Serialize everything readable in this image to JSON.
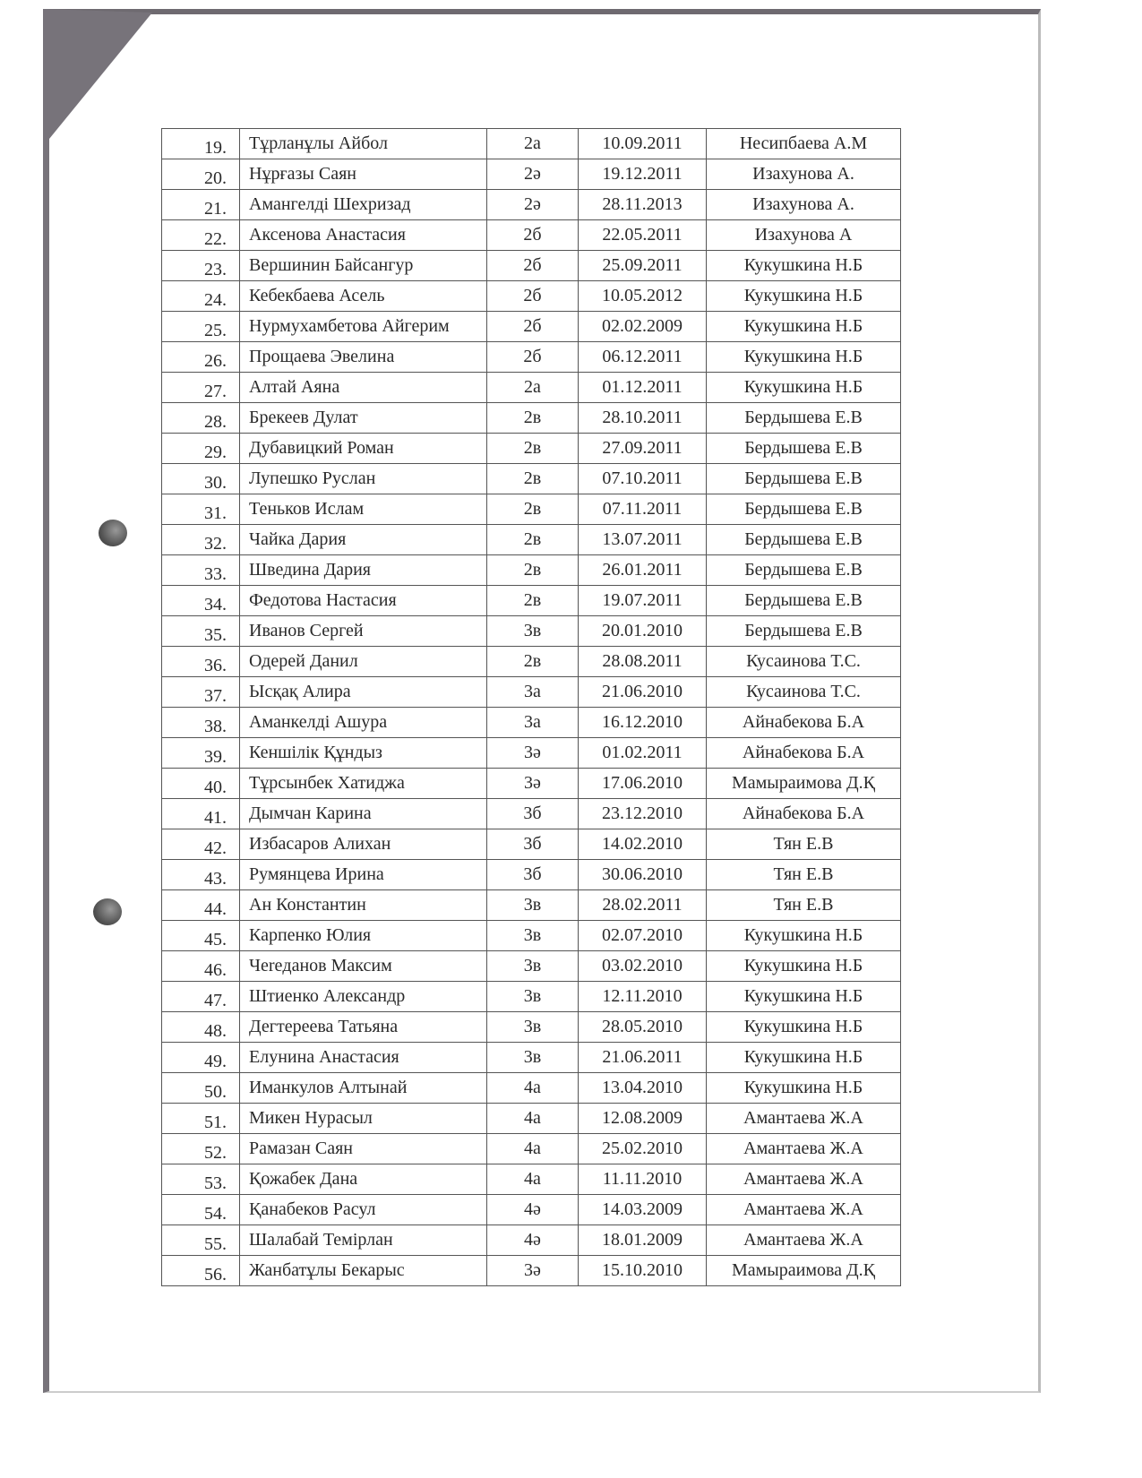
{
  "table": {
    "rows": [
      {
        "num": "19.",
        "name": "Тұрланұлы Айбол",
        "class": "2а",
        "date": "10.09.2011",
        "teacher": "Несипбаева А.М"
      },
      {
        "num": "20.",
        "name": "Нұрғазы Саян",
        "class": "2ә",
        "date": "19.12.2011",
        "teacher": "Изахунова А."
      },
      {
        "num": "21.",
        "name": "Амангелді Шехризад",
        "class": "2ә",
        "date": "28.11.2013",
        "teacher": "Изахунова А."
      },
      {
        "num": "22.",
        "name": "Аксенова  Анастасия",
        "class": "2б",
        "date": "22.05.2011",
        "teacher": "Изахунова А"
      },
      {
        "num": "23.",
        "name": "Вершинин Байсангур",
        "class": "2б",
        "date": "25.09.2011",
        "teacher": "Кукушкина Н.Б"
      },
      {
        "num": "24.",
        "name": "Кебекбаева Асель",
        "class": "2б",
        "date": "10.05.2012",
        "teacher": "Кукушкина Н.Б"
      },
      {
        "num": "25.",
        "name": "Нурмухамбетова Айгерим",
        "class": "2б",
        "date": "02.02.2009",
        "teacher": "Кукушкина Н.Б"
      },
      {
        "num": "26.",
        "name": "Прощаева Эвелина",
        "class": "2б",
        "date": "06.12.2011",
        "teacher": "Кукушкина Н.Б"
      },
      {
        "num": "27.",
        "name": "Алтай Аяна",
        "class": "2а",
        "date": "01.12.2011",
        "teacher": "Кукушкина Н.Б"
      },
      {
        "num": "28.",
        "name": "Брекеев Дулат",
        "class": "2в",
        "date": "28.10.2011",
        "teacher": "Бердышева Е.В"
      },
      {
        "num": "29.",
        "name": "Дубавицкий Роман",
        "class": "2в",
        "date": "27.09.2011",
        "teacher": "Бердышева Е.В"
      },
      {
        "num": "30.",
        "name": "Лупешко Руслан",
        "class": "2в",
        "date": "07.10.2011",
        "teacher": "Бердышева Е.В"
      },
      {
        "num": "31.",
        "name": "Теньков Ислам",
        "class": "2в",
        "date": "07.11.2011",
        "teacher": "Бердышева Е.В"
      },
      {
        "num": "32.",
        "name": "Чайка Дария",
        "class": "2в",
        "date": "13.07.2011",
        "teacher": "Бердышева Е.В"
      },
      {
        "num": "33.",
        "name": "Шведина Дария",
        "class": "2в",
        "date": "26.01.2011",
        "teacher": "Бердышева Е.В"
      },
      {
        "num": "34.",
        "name": "Федотова Настасия",
        "class": "2в",
        "date": "19.07.2011",
        "teacher": "Бердышева Е.В"
      },
      {
        "num": "35.",
        "name": "Иванов Сергей",
        "class": "3в",
        "date": "20.01.2010",
        "teacher": "Бердышева Е.В"
      },
      {
        "num": "36.",
        "name": "Одерей Данил",
        "class": "2в",
        "date": "28.08.2011",
        "teacher": "Кусаинова Т.С."
      },
      {
        "num": "37.",
        "name": "Ысқақ Алира",
        "class": "3а",
        "date": "21.06.2010",
        "teacher": "Кусаинова Т.С."
      },
      {
        "num": "38.",
        "name": "Аманкелді Ашура",
        "class": "3а",
        "date": "16.12.2010",
        "teacher": "Айнабекова Б.А"
      },
      {
        "num": "39.",
        "name": "Кеншілік Құндыз",
        "class": "3ә",
        "date": "01.02.2011",
        "teacher": "Айнабекова Б.А"
      },
      {
        "num": "40.",
        "name": "Тұрсынбек Хатиджа",
        "class": "3ә",
        "date": "17.06.2010",
        "teacher": "Мамыраимова Д.Қ"
      },
      {
        "num": "41.",
        "name": "Дымчан Карина",
        "class": "3б",
        "date": "23.12.2010",
        "teacher": "Айнабекова Б.А"
      },
      {
        "num": "42.",
        "name": "Избасаров Алихан",
        "class": "3б",
        "date": "14.02.2010",
        "teacher": "Тян Е.В"
      },
      {
        "num": "43.",
        "name": "Румянцева Ирина",
        "class": "3б",
        "date": "30.06.2010",
        "teacher": "Тян Е.В"
      },
      {
        "num": "44.",
        "name": "Ан Константин",
        "class": "3в",
        "date": "28.02.2011",
        "teacher": "Тян Е.В"
      },
      {
        "num": "45.",
        "name": "Карпенко Юлия",
        "class": "3в",
        "date": "02.07.2010",
        "teacher": "Кукушкина Н.Б"
      },
      {
        "num": "46.",
        "name": "Чereданов Максим",
        "class": "3в",
        "date": "03.02.2010",
        "teacher": "Кукушкина Н.Б"
      },
      {
        "num": "47.",
        "name": "Штиенко Александр",
        "class": "3в",
        "date": "12.11.2010",
        "teacher": "Кукушкина Н.Б"
      },
      {
        "num": "48.",
        "name": "Дегтереева Татьяна",
        "class": "3в",
        "date": "28.05.2010",
        "teacher": "Кукушкина Н.Б"
      },
      {
        "num": "49.",
        "name": "Елунина Анастасия",
        "class": "3в",
        "date": "21.06.2011",
        "teacher": "Кукушкина Н.Б"
      },
      {
        "num": "50.",
        "name": "Иманкулов Алтынай",
        "class": "4а",
        "date": "13.04.2010",
        "teacher": "Кукушкина Н.Б"
      },
      {
        "num": "51.",
        "name": "Микен Нурасыл",
        "class": "4а",
        "date": "12.08.2009",
        "teacher": "Амантаева Ж.А"
      },
      {
        "num": "52.",
        "name": "Рамазан Саян",
        "class": "4а",
        "date": "25.02.2010",
        "teacher": "Амантаева Ж.А"
      },
      {
        "num": "53.",
        "name": "Қожабек Дана",
        "class": "4а",
        "date": "11.11.2010",
        "teacher": "Амантаева Ж.А"
      },
      {
        "num": "54.",
        "name": "Қанабеков  Расул",
        "class": "4ә",
        "date": "14.03.2009",
        "teacher": "Амантаева Ж.А"
      },
      {
        "num": "55.",
        "name": "Шалабай Темірлан",
        "class": "4ә",
        "date": "18.01.2009",
        "teacher": "Амантаева Ж.А"
      },
      {
        "num": "56.",
        "name": "Жанбатұлы Бекарыс",
        "class": "3ә",
        "date": "15.10.2010",
        "teacher": "Мамыраимова Д.Қ"
      }
    ]
  }
}
